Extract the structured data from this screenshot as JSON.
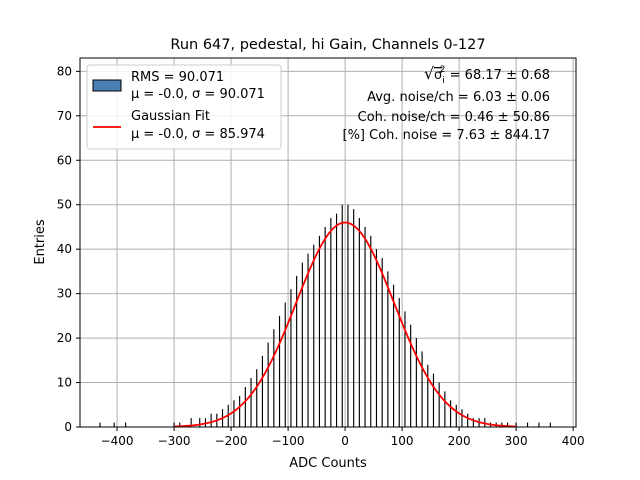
{
  "chart_data": {
    "type": "bar",
    "title": "Run 647, pedestal, hi Gain, Channels 0-127",
    "xlabel": "ADC Counts",
    "ylabel": "Entries",
    "xlim": [
      -465,
      405
    ],
    "ylim": [
      0,
      83
    ],
    "xticks": [
      -400,
      -300,
      -200,
      -100,
      0,
      100,
      200,
      300,
      400
    ],
    "yticks": [
      0,
      10,
      20,
      30,
      40,
      50,
      60,
      70,
      80
    ],
    "grid": true,
    "legend_placement": "top-left",
    "histogram": {
      "name": "RMS = 90.071",
      "name_line2": "μ = -0.0, σ = 90.071",
      "bin_width": 2,
      "mu": 0.0,
      "sigma": 90.071,
      "x": [
        -430,
        -405,
        -385,
        -300,
        -290,
        -270,
        -255,
        -245,
        -235,
        -225,
        -215,
        -205,
        -195,
        -185,
        -175,
        -165,
        -155,
        -145,
        -135,
        -125,
        -115,
        -105,
        -95,
        -85,
        -75,
        -65,
        -55,
        -45,
        -35,
        -25,
        -15,
        -5,
        5,
        15,
        25,
        35,
        45,
        55,
        65,
        75,
        85,
        95,
        105,
        115,
        125,
        135,
        145,
        155,
        165,
        175,
        185,
        195,
        205,
        215,
        225,
        235,
        245,
        255,
        265,
        275,
        285,
        300,
        320,
        340,
        360
      ],
      "y": [
        1,
        1,
        1,
        1,
        1,
        2,
        2,
        2,
        3,
        3,
        4,
        5,
        6,
        7,
        9,
        11,
        13,
        16,
        19,
        22,
        25,
        28,
        31,
        34,
        37,
        39,
        41,
        43,
        45,
        47,
        48,
        50,
        50,
        49,
        47,
        45,
        43,
        40,
        38,
        35,
        32,
        29,
        26,
        23,
        20,
        17,
        14,
        12,
        10,
        8,
        6,
        5,
        4,
        3,
        2,
        2,
        2,
        1,
        1,
        1,
        1,
        1,
        1,
        1,
        1
      ]
    },
    "gaussian_fit": {
      "name": "Gaussian Fit",
      "name_line2": "μ = -0.0, σ = 85.974",
      "amplitude": 46,
      "mu": 0.0,
      "sigma": 85.974,
      "color": "#ff0000"
    },
    "annotations": [
      {
        "sqrt_symbol": "√",
        "base": "σ",
        "sup": "2",
        "sub": "i",
        "rest": " = 68.17 ± 0.68"
      },
      "Avg. noise/ch = 6.03 ± 0.06",
      "Coh. noise/ch = 0.46 ± 50.86",
      "[%] Coh. noise = 7.63 ± 844.17"
    ],
    "colors": {
      "histogram_fill": "#000000",
      "legend_patch": "#4a7fb5",
      "grid": "#b0b0b0"
    }
  }
}
